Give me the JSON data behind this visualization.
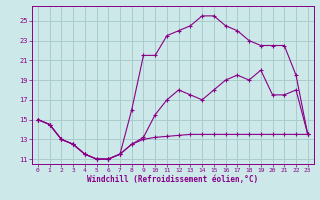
{
  "xlabel": "Windchill (Refroidissement éolien,°C)",
  "bg_color": "#cce8e8",
  "grid_color": "#aacccc",
  "line_color": "#880088",
  "x_ticks": [
    0,
    1,
    2,
    3,
    4,
    5,
    6,
    7,
    8,
    9,
    10,
    11,
    12,
    13,
    14,
    15,
    16,
    17,
    18,
    19,
    20,
    21,
    22,
    23
  ],
  "y_ticks": [
    11,
    13,
    15,
    17,
    19,
    21,
    23,
    25
  ],
  "xlim": [
    -0.5,
    23.5
  ],
  "ylim": [
    10.5,
    26.5
  ],
  "curve1_x": [
    0,
    1,
    2,
    3,
    4,
    5,
    6,
    7,
    8,
    9,
    10,
    11,
    12,
    13,
    14,
    15,
    16,
    17,
    18,
    19,
    20,
    21,
    22,
    23
  ],
  "curve1_y": [
    15.0,
    14.5,
    13.0,
    12.5,
    11.5,
    11.0,
    11.0,
    11.5,
    12.5,
    13.0,
    13.2,
    13.3,
    13.4,
    13.5,
    13.5,
    13.5,
    13.5,
    13.5,
    13.5,
    13.5,
    13.5,
    13.5,
    13.5,
    13.5
  ],
  "curve2_x": [
    0,
    1,
    2,
    3,
    4,
    5,
    6,
    7,
    8,
    9,
    10,
    11,
    12,
    13,
    14,
    15,
    16,
    17,
    18,
    19,
    20,
    21,
    22,
    23
  ],
  "curve2_y": [
    15.0,
    14.5,
    13.0,
    12.5,
    11.5,
    11.0,
    11.0,
    11.5,
    12.5,
    13.2,
    15.5,
    17.0,
    18.0,
    17.5,
    17.0,
    18.0,
    19.0,
    19.5,
    19.0,
    20.0,
    17.5,
    17.5,
    18.0,
    13.5
  ],
  "curve3_x": [
    0,
    1,
    2,
    3,
    4,
    5,
    6,
    7,
    8,
    9,
    10,
    11,
    12,
    13,
    14,
    15,
    16,
    17,
    18,
    19,
    20,
    21,
    22,
    23
  ],
  "curve3_y": [
    15.0,
    14.5,
    13.0,
    12.5,
    11.5,
    11.0,
    11.0,
    11.5,
    16.0,
    21.5,
    21.5,
    23.5,
    24.0,
    24.5,
    25.5,
    25.5,
    24.5,
    24.0,
    23.0,
    22.5,
    22.5,
    22.5,
    19.5,
    13.5
  ]
}
